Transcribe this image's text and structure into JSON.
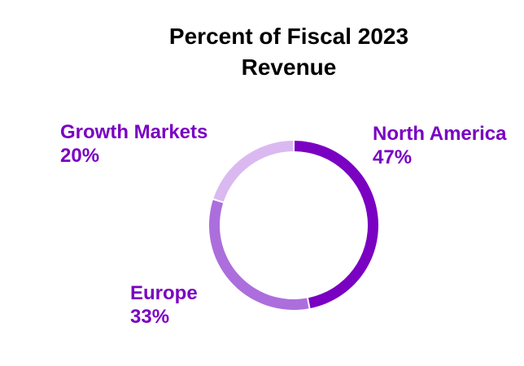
{
  "chart_data": {
    "type": "pie",
    "style": "donut",
    "title_lines": [
      "Percent of Fiscal 2023",
      "Revenue"
    ],
    "start_angle_deg": 0,
    "direction": "clockwise",
    "slices": [
      {
        "name": "North America",
        "value": 47,
        "value_label": "47%",
        "color": "#7a00c2",
        "label_color": "#7a00c2"
      },
      {
        "name": "Europe",
        "value": 33,
        "value_label": "33%",
        "color": "#ac6edc",
        "label_color": "#7a00c2"
      },
      {
        "name": "Growth Markets",
        "value": 20,
        "value_label": "20%",
        "color": "#dab9f1",
        "label_color": "#7a00c2"
      }
    ],
    "legend": "none",
    "grid": false
  }
}
